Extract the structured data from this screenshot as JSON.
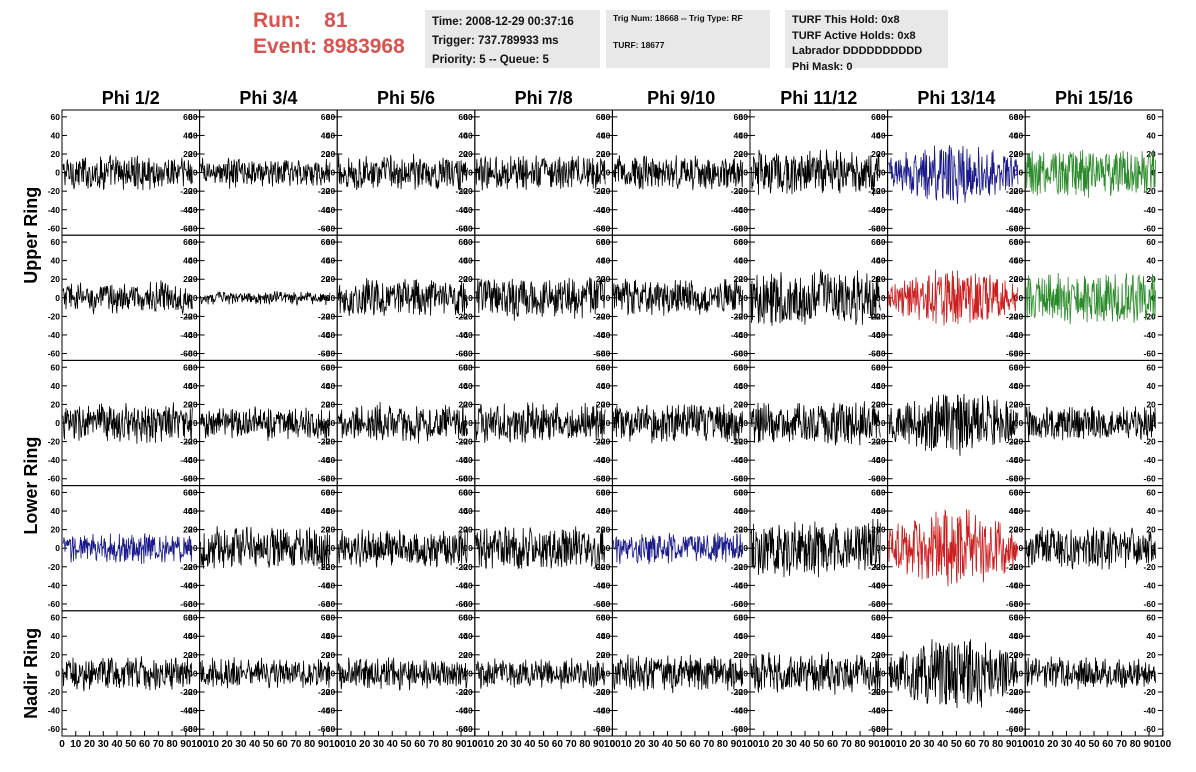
{
  "header": {
    "run_label": "Run:",
    "run_value": "81",
    "event_label": "Event:",
    "event_value": "8983968"
  },
  "info_time": {
    "time": "Time: 2008-12-29 00:37:16",
    "trigger": "Trigger: 737.789933 ms",
    "priority": "Priority: 5 -- Queue: 5"
  },
  "info_trig": {
    "trig": "Trig Num: 18668 -- Trig Type: RF",
    "turf": "TURF: 18677"
  },
  "info_turf": {
    "hold": "TURF This Hold: 0x8",
    "active": "TURF Active Holds: 0x8",
    "labrador": "Labrador DDDDDDDDDD",
    "phimask": "Phi Mask: 0"
  },
  "chart_data": {
    "type": "line",
    "columns": [
      "Phi 1/2",
      "Phi 3/4",
      "Phi 5/6",
      "Phi 7/8",
      "Phi 9/10",
      "Phi 11/12",
      "Phi 13/14",
      "Phi 15/16"
    ],
    "ring_labels": [
      {
        "label": "Upper Ring",
        "rows": [
          0,
          1
        ]
      },
      {
        "label": "Lower Ring",
        "rows": [
          2,
          3
        ]
      },
      {
        "label": "Nadir Ring",
        "rows": [
          4
        ]
      }
    ],
    "ylim": [
      -62,
      62
    ],
    "yticks": [
      -60,
      -40,
      -20,
      0,
      20,
      40,
      60
    ],
    "xlim": [
      0,
      100
    ],
    "xticks": [
      0,
      10,
      20,
      30,
      40,
      50,
      60,
      70,
      80,
      90,
      100
    ],
    "samples_per_trace": 260,
    "colors": {
      "k": "#000000",
      "b": "#1a1a8c",
      "r": "#cc1f1f",
      "g": "#2a8a2a"
    },
    "trace_colors": [
      [
        "k",
        "k",
        "k",
        "k",
        "k",
        "k",
        "b",
        "g"
      ],
      [
        "k",
        "k",
        "k",
        "k",
        "k",
        "k",
        "r",
        "g"
      ],
      [
        "k",
        "k",
        "k",
        "k",
        "k",
        "k",
        "k",
        "k"
      ],
      [
        "b",
        "k",
        "k",
        "k",
        "b",
        "k",
        "r",
        "k"
      ],
      [
        "k",
        "k",
        "k",
        "k",
        "k",
        "k",
        "k",
        "k"
      ]
    ],
    "trace_amplitude": [
      [
        16,
        13,
        16,
        16,
        16,
        22,
        24,
        24
      ],
      [
        14,
        3,
        17,
        20,
        17,
        26,
        22,
        24
      ],
      [
        18,
        15,
        18,
        18,
        18,
        20,
        26,
        15
      ],
      [
        13,
        20,
        18,
        20,
        13,
        28,
        32,
        20
      ],
      [
        15,
        13,
        14,
        13,
        17,
        20,
        30,
        14
      ]
    ]
  }
}
